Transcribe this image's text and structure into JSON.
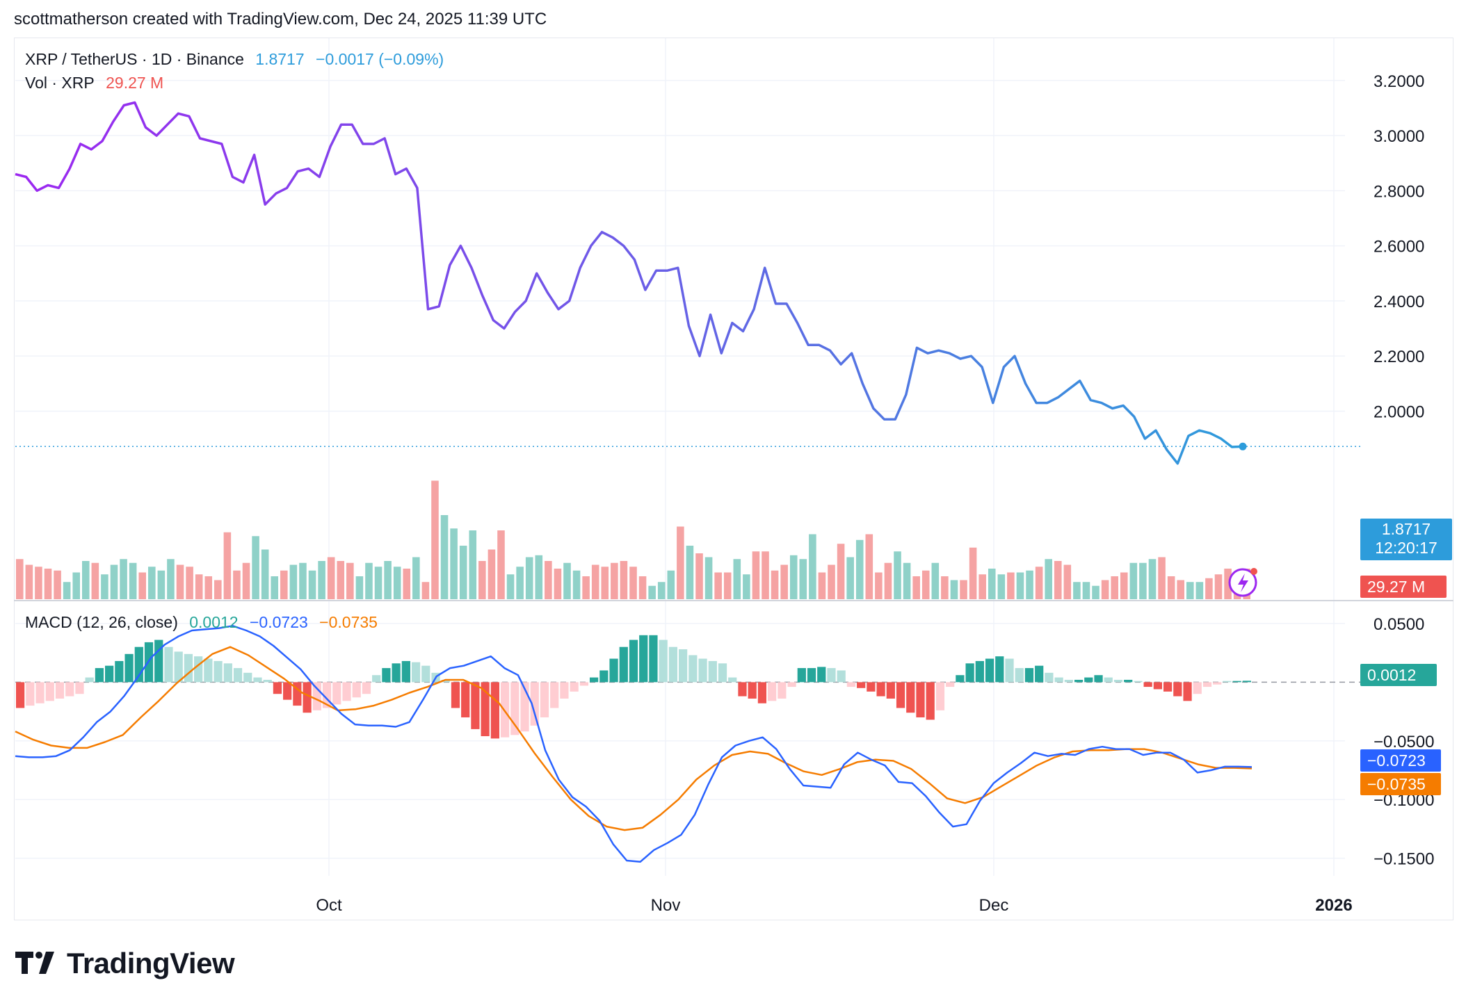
{
  "attribution": "scottmatherson created with TradingView.com, Dec 24, 2025 11:39 UTC",
  "legend": {
    "symbol": "XRP / TetherUS · 1D · Binance",
    "price": "1.8717",
    "change": "−0.0017 (−0.09%)",
    "vol_label": "Vol · XRP",
    "vol_value": "29.27 M",
    "macd_label": "MACD (12, 26, close)",
    "macd_hist": "0.0012",
    "macd_line": "−0.0723",
    "macd_signal": "−0.0735"
  },
  "price_tags": {
    "last": "1.8717",
    "countdown": "12:20:17",
    "volume": "29.27 M",
    "hist": "0.0012",
    "macd": "−0.0723",
    "signal": "−0.0735"
  },
  "logo_text": "TradingView",
  "colors": {
    "purple": "#9c27f0",
    "blue": "#2d9cdb",
    "up": "#26a69a",
    "down": "#ef5350",
    "up_light": "#b2dfdb",
    "down_light": "#ffcdd2",
    "macd": "#2962ff",
    "signal": "#f57c00"
  },
  "chart_data": {
    "type": "line",
    "x_ticks": [
      "Oct",
      "Nov",
      "Dec",
      "2026"
    ],
    "price_axis": [
      "3.2000",
      "3.0000",
      "2.8000",
      "2.6000",
      "2.4000",
      "2.2000",
      "2.0000"
    ],
    "macd_axis": [
      "0.0500",
      "−0.0500",
      "−0.1000",
      "−0.1500"
    ],
    "ylim_price": [
      1.6,
      3.26
    ],
    "ylim_macd": [
      -0.165,
      0.06
    ],
    "price": [
      2.86,
      2.85,
      2.8,
      2.82,
      2.81,
      2.88,
      2.97,
      2.95,
      2.98,
      3.05,
      3.11,
      3.12,
      3.03,
      3.0,
      3.04,
      3.08,
      3.07,
      2.99,
      2.98,
      2.97,
      2.85,
      2.83,
      2.93,
      2.75,
      2.79,
      2.81,
      2.87,
      2.88,
      2.85,
      2.96,
      3.04,
      3.04,
      2.97,
      2.97,
      2.99,
      2.86,
      2.88,
      2.81,
      2.37,
      2.38,
      2.53,
      2.6,
      2.52,
      2.42,
      2.33,
      2.3,
      2.36,
      2.4,
      2.5,
      2.43,
      2.37,
      2.4,
      2.52,
      2.6,
      2.65,
      2.63,
      2.6,
      2.55,
      2.44,
      2.51,
      2.51,
      2.52,
      2.31,
      2.2,
      2.35,
      2.21,
      2.32,
      2.29,
      2.37,
      2.52,
      2.39,
      2.39,
      2.32,
      2.24,
      2.24,
      2.22,
      2.17,
      2.21,
      2.1,
      2.01,
      1.97,
      1.97,
      2.06,
      2.23,
      2.21,
      2.22,
      2.21,
      2.19,
      2.2,
      2.16,
      2.03,
      2.16,
      2.2,
      2.1,
      2.03,
      2.03,
      2.05,
      2.08,
      2.11,
      2.04,
      2.03,
      2.01,
      2.02,
      1.98,
      1.9,
      1.93,
      1.86,
      1.81,
      1.91,
      1.93,
      1.92,
      1.9,
      1.87,
      1.8717
    ],
    "volume": [
      21,
      18,
      17,
      16,
      15,
      9,
      14,
      20,
      19,
      13,
      18,
      21,
      19,
      14,
      17,
      15,
      21,
      18,
      17,
      13,
      12,
      10,
      35,
      15,
      19,
      33,
      26,
      12,
      15,
      18,
      19,
      15,
      20,
      22,
      20,
      19,
      12,
      19,
      17,
      20,
      17,
      16,
      22,
      9,
      62,
      44,
      37,
      28,
      36,
      20,
      26,
      36,
      13,
      17,
      22,
      23,
      20,
      16,
      19,
      15,
      12,
      18,
      17,
      19,
      20,
      17,
      12,
      7,
      9,
      15,
      38,
      28,
      24,
      22,
      14,
      14,
      21,
      13,
      25,
      25,
      15,
      18,
      23,
      21,
      34,
      14,
      18,
      29,
      22,
      31,
      34,
      14,
      19,
      25,
      19,
      12,
      15,
      19,
      12,
      10,
      10,
      27,
      13,
      16,
      13,
      14,
      14,
      15,
      17,
      21,
      20,
      18,
      9,
      9,
      7,
      10,
      12,
      14,
      19,
      19,
      21,
      22,
      12,
      10,
      9,
      9,
      11,
      13,
      16,
      13,
      16
    ],
    "volume_dir": [
      0,
      0,
      0,
      0,
      0,
      1,
      1,
      1,
      0,
      1,
      1,
      1,
      1,
      0,
      1,
      1,
      1,
      0,
      0,
      0,
      0,
      0,
      0,
      0,
      0,
      1,
      1,
      1,
      0,
      1,
      1,
      1,
      1,
      0,
      0,
      0,
      1,
      1,
      1,
      1,
      1,
      0,
      1,
      0,
      0,
      1,
      1,
      1,
      1,
      0,
      0,
      0,
      1,
      1,
      1,
      1,
      0,
      0,
      1,
      1,
      0,
      0,
      0,
      0,
      0,
      0,
      0,
      1,
      1,
      1,
      0,
      1,
      0,
      1,
      0,
      0,
      1,
      1,
      0,
      0,
      0,
      0,
      1,
      1,
      1,
      0,
      0,
      0,
      1,
      1,
      0,
      0,
      0,
      1,
      1,
      0,
      0,
      1,
      0,
      1,
      0,
      0,
      0,
      1,
      1,
      0,
      1,
      1,
      0,
      1,
      0,
      0,
      1,
      1,
      1,
      0,
      0,
      0,
      1,
      1,
      1,
      0,
      0,
      0,
      1,
      1,
      0,
      0,
      0,
      0,
      0
    ],
    "macd_hist": [
      -0.022,
      -0.02,
      -0.018,
      -0.016,
      -0.014,
      -0.012,
      -0.01,
      0.004,
      0.012,
      0.014,
      0.018,
      0.024,
      0.03,
      0.034,
      0.036,
      0.03,
      0.026,
      0.024,
      0.022,
      0.02,
      0.018,
      0.016,
      0.012,
      0.008,
      0.004,
      0.002,
      -0.01,
      -0.015,
      -0.02,
      -0.026,
      -0.024,
      -0.022,
      -0.019,
      -0.016,
      -0.013,
      -0.01,
      0.006,
      0.012,
      0.016,
      0.018,
      0.017,
      0.014,
      0.008,
      0.002,
      -0.022,
      -0.03,
      -0.04,
      -0.046,
      -0.048,
      -0.047,
      -0.045,
      -0.042,
      -0.037,
      -0.03,
      -0.022,
      -0.014,
      -0.008,
      -0.003,
      0.004,
      0.01,
      0.02,
      0.03,
      0.036,
      0.04,
      0.04,
      0.036,
      0.03,
      0.028,
      0.023,
      0.02,
      0.018,
      0.016,
      0.004,
      -0.012,
      -0.014,
      -0.018,
      -0.016,
      -0.014,
      -0.004,
      0.012,
      0.012,
      0.013,
      0.012,
      0.01,
      -0.004,
      -0.005,
      -0.008,
      -0.012,
      -0.014,
      -0.022,
      -0.026,
      -0.03,
      -0.032,
      -0.024,
      -0.004,
      0.006,
      0.016,
      0.018,
      0.02,
      0.022,
      0.02,
      0.012,
      0.012,
      0.014,
      0.008,
      0.004,
      0.002,
      0.002,
      0.004,
      0.006,
      0.004,
      0.002,
      0.002,
      0.001,
      -0.004,
      -0.006,
      -0.008,
      -0.012,
      -0.016,
      -0.01,
      -0.004,
      -0.002,
      0.001,
      0.001,
      0.0012
    ],
    "macd_line": [
      -0.063,
      -0.064,
      -0.064,
      -0.063,
      -0.058,
      -0.047,
      -0.034,
      -0.025,
      -0.012,
      0.004,
      0.021,
      0.032,
      0.039,
      0.044,
      0.045,
      0.046,
      0.048,
      0.044,
      0.039,
      0.031,
      0.021,
      0.011,
      -0.003,
      -0.015,
      -0.027,
      -0.036,
      -0.037,
      -0.037,
      -0.038,
      -0.034,
      -0.015,
      0.005,
      0.012,
      0.014,
      0.018,
      0.022,
      0.012,
      0.006,
      -0.018,
      -0.058,
      -0.083,
      -0.098,
      -0.106,
      -0.118,
      -0.138,
      -0.152,
      -0.153,
      -0.143,
      -0.137,
      -0.13,
      -0.113,
      -0.087,
      -0.064,
      -0.054,
      -0.05,
      -0.047,
      -0.057,
      -0.074,
      -0.088,
      -0.089,
      -0.09,
      -0.07,
      -0.06,
      -0.066,
      -0.071,
      -0.085,
      -0.086,
      -0.097,
      -0.111,
      -0.123,
      -0.121,
      -0.101,
      -0.086,
      -0.077,
      -0.069,
      -0.06,
      -0.063,
      -0.061,
      -0.062,
      -0.057,
      -0.055,
      -0.057,
      -0.057,
      -0.062,
      -0.06,
      -0.06,
      -0.066,
      -0.077,
      -0.075,
      -0.072,
      -0.072,
      -0.0723
    ],
    "macd_signal": [
      -0.042,
      -0.049,
      -0.054,
      -0.056,
      -0.056,
      -0.051,
      -0.045,
      -0.03,
      -0.016,
      -0.001,
      0.012,
      0.024,
      0.03,
      0.023,
      0.013,
      0.003,
      -0.009,
      -0.016,
      -0.024,
      -0.023,
      -0.02,
      -0.015,
      -0.009,
      -0.004,
      0.002,
      0.002,
      -0.005,
      -0.018,
      -0.039,
      -0.061,
      -0.081,
      -0.1,
      -0.114,
      -0.123,
      -0.126,
      -0.124,
      -0.113,
      -0.1,
      -0.083,
      -0.071,
      -0.062,
      -0.059,
      -0.061,
      -0.069,
      -0.076,
      -0.079,
      -0.074,
      -0.068,
      -0.066,
      -0.067,
      -0.074,
      -0.086,
      -0.099,
      -0.103,
      -0.098,
      -0.089,
      -0.08,
      -0.071,
      -0.064,
      -0.059,
      -0.058,
      -0.058,
      -0.057,
      -0.057,
      -0.06,
      -0.065,
      -0.07,
      -0.073,
      -0.073,
      -0.0735
    ]
  }
}
